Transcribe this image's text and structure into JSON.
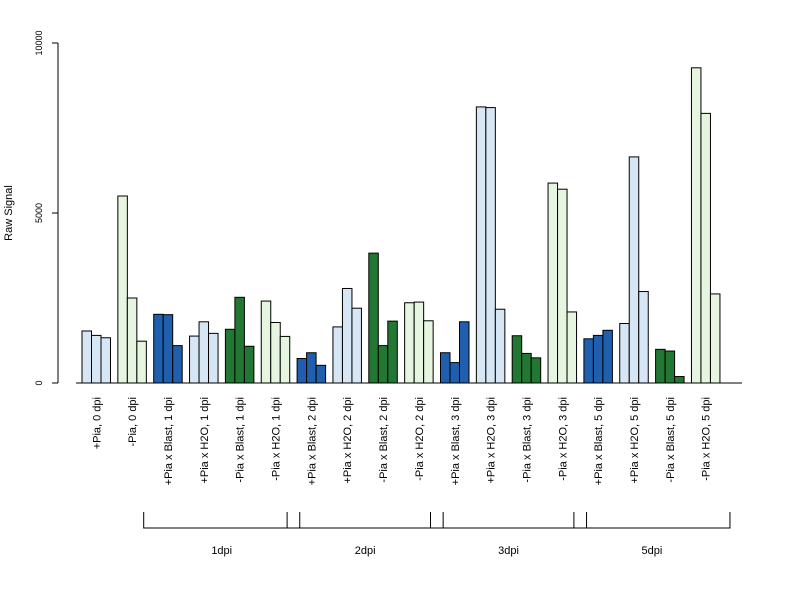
{
  "colors": {
    "light_blue": "#d7e6f5",
    "light_green": "#e5f5e0",
    "dark_blue": "#1f5fae",
    "dark_green": "#227833",
    "border": "#000000"
  },
  "chart_data": {
    "type": "bar",
    "ylabel": "Raw Signal",
    "xlabel": "",
    "title": "",
    "ylim": [
      0,
      10000
    ],
    "yticks": [
      0,
      5000,
      10000
    ],
    "grid": false,
    "categories": [
      "+Pia, 0 dpi",
      "-Pia, 0 dpi",
      "+Pia x Blast, 1 dpi",
      "+Pia x H2O, 1 dpi",
      "-Pia x Blast, 1 dpi",
      "-Pia x H2O, 1 dpi",
      "+Pia x Blast, 2 dpi",
      "+Pia x H2O, 2 dpi",
      "-Pia x Blast, 2 dpi",
      "-Pia x H2O, 2 dpi",
      "+Pia x Blast, 3 dpi",
      "+Pia x H2O, 3 dpi",
      "-Pia x Blast, 3 dpi",
      "-Pia x H2O, 3 dpi",
      "+Pia x Blast, 5 dpi",
      "+Pia x H2O, 5 dpi",
      "-Pia x Blast, 5 dpi",
      "-Pia x H2O, 5 dpi"
    ],
    "category_colors": [
      "light_blue",
      "light_green",
      "dark_blue",
      "light_blue",
      "dark_green",
      "light_green",
      "dark_blue",
      "light_blue",
      "dark_green",
      "light_green",
      "dark_blue",
      "light_blue",
      "dark_green",
      "light_green",
      "dark_blue",
      "light_blue",
      "dark_green",
      "light_green"
    ],
    "replicates": [
      [
        1530,
        1400,
        1330
      ],
      [
        5500,
        2500,
        1230
      ],
      [
        2020,
        2010,
        1100
      ],
      [
        1380,
        1800,
        1460
      ],
      [
        1580,
        2520,
        1080
      ],
      [
        2410,
        1780,
        1370
      ],
      [
        720,
        890,
        520
      ],
      [
        1650,
        2780,
        2200
      ],
      [
        3820,
        1100,
        1820
      ],
      [
        2360,
        2380,
        1830
      ],
      [
        890,
        600,
        1800
      ],
      [
        8120,
        8100,
        2170
      ],
      [
        1390,
        870,
        740
      ],
      [
        5880,
        5700,
        2090
      ],
      [
        1300,
        1400,
        1550
      ],
      [
        1750,
        6650,
        2690
      ],
      [
        990,
        940,
        190
      ],
      [
        9270,
        7930,
        2620
      ]
    ],
    "groups": [
      {
        "label": "1dpi",
        "from": 2,
        "to": 5
      },
      {
        "label": "2dpi",
        "from": 6,
        "to": 9
      },
      {
        "label": "3dpi",
        "from": 10,
        "to": 13
      },
      {
        "label": "5dpi",
        "from": 14,
        "to": 17
      }
    ]
  }
}
